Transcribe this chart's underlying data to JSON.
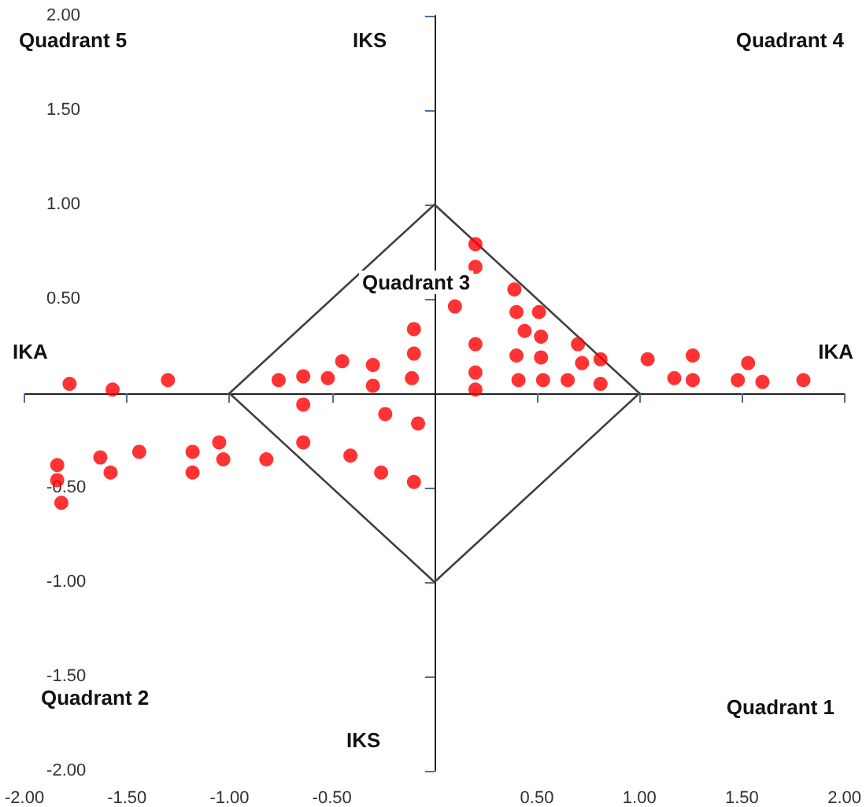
{
  "chart_data": {
    "type": "scatter",
    "xlim": [
      -2,
      2
    ],
    "ylim": [
      -2,
      2
    ],
    "xticks": [
      {
        "value": -2,
        "label": "-2.00"
      },
      {
        "value": -1.5,
        "label": "-1.50"
      },
      {
        "value": -1,
        "label": "-1.00"
      },
      {
        "value": -0.5,
        "label": "-0.50"
      },
      {
        "value": 0.5,
        "label": "0.50"
      },
      {
        "value": 1,
        "label": "1.00"
      },
      {
        "value": 1.5,
        "label": "1.50"
      },
      {
        "value": 2,
        "label": "2.00"
      }
    ],
    "yticks": [
      {
        "value": -2,
        "label": "-2.00"
      },
      {
        "value": -1.5,
        "label": "-1.50"
      },
      {
        "value": -1,
        "label": "-1.00"
      },
      {
        "value": -0.5,
        "label": "-0.50"
      },
      {
        "value": 0.5,
        "label": "0.50"
      },
      {
        "value": 1,
        "label": "1.00"
      },
      {
        "value": 1.5,
        "label": "1.50"
      },
      {
        "value": 2,
        "label": "2.00"
      }
    ],
    "grid": false,
    "annotations": [
      "Quadrant 5",
      "IKS",
      "Quadrant 4",
      "Quadrant 3",
      "IKA",
      "IKA",
      "Quadrant 2",
      "IKS",
      "Quadrant 1"
    ],
    "series": [
      {
        "type": "line",
        "color": "#404040",
        "marker": "none",
        "x": [
          -1,
          0,
          1
        ],
        "values": [
          0,
          1,
          0
        ]
      },
      {
        "type": "line",
        "color": "#404040",
        "marker": "none",
        "x": [
          -1,
          0,
          1
        ],
        "values": [
          0,
          -1,
          0
        ]
      },
      {
        "type": "scatter",
        "color": "#ff0000",
        "marker": "circle",
        "x": [
          -1.78,
          -1.57,
          -1.3,
          -0.76,
          -0.64,
          -0.52,
          -0.45,
          -0.3,
          -0.3,
          -0.1,
          -0.1,
          -0.11,
          -0.64,
          -0.24,
          -0.08,
          -0.64,
          -0.41,
          -0.26,
          -0.1,
          -0.82,
          -1.03,
          -1.05,
          -1.18,
          -1.18,
          -1.44,
          -1.58,
          -1.63,
          -1.84,
          -1.84,
          -1.82,
          0.2,
          0.2,
          0.1,
          0.39,
          0.4,
          0.51,
          0.44,
          0.52,
          0.2,
          0.7,
          0.4,
          0.52,
          0.72,
          0.81,
          0.2,
          0.2,
          0.41,
          0.53,
          0.65,
          0.81,
          1.04,
          1.26,
          1.17,
          1.26,
          1.48,
          1.53,
          1.6,
          1.8
        ],
        "values": [
          0.05,
          0.02,
          0.07,
          0.07,
          0.09,
          0.08,
          0.17,
          0.15,
          0.04,
          0.34,
          0.21,
          0.08,
          -0.06,
          -0.11,
          -0.16,
          -0.26,
          -0.33,
          -0.42,
          -0.47,
          -0.35,
          -0.35,
          -0.26,
          -0.31,
          -0.42,
          -0.31,
          -0.42,
          -0.34,
          -0.38,
          -0.46,
          -0.58,
          0.79,
          0.67,
          0.46,
          0.55,
          0.43,
          0.43,
          0.33,
          0.3,
          0.26,
          0.26,
          0.2,
          0.19,
          0.16,
          0.18,
          0.11,
          0.02,
          0.07,
          0.07,
          0.07,
          0.05,
          0.18,
          0.2,
          0.08,
          0.07,
          0.07,
          0.16,
          0.06,
          0.07
        ]
      }
    ]
  }
}
